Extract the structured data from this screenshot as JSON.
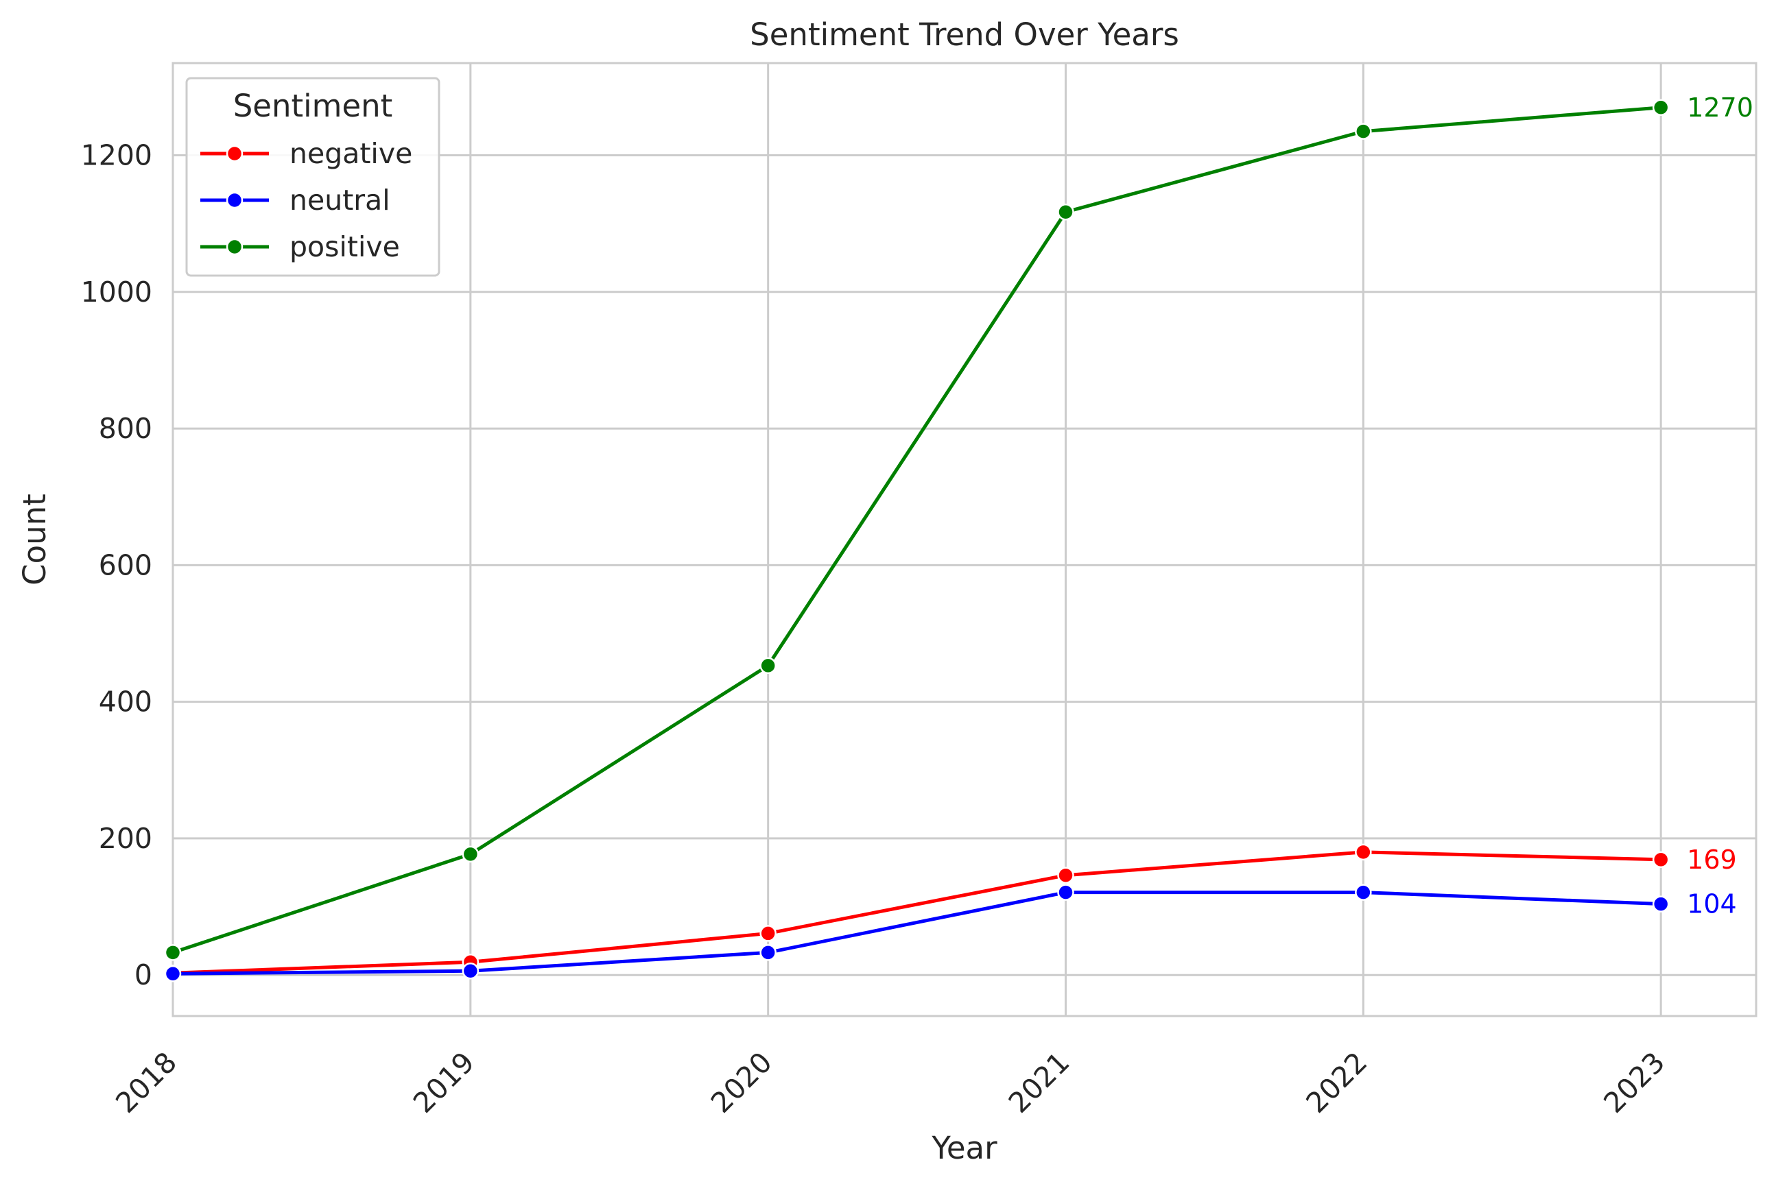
{
  "chart_data": {
    "type": "line",
    "title": "Sentiment Trend Over Years",
    "xlabel": "Year",
    "ylabel": "Count",
    "x": [
      "2018",
      "2019",
      "2020",
      "2021",
      "2022",
      "2023"
    ],
    "xlim": [
      2018,
      2023.32
    ],
    "ylim": [
      -60,
      1335
    ],
    "yticks": [
      0,
      200,
      400,
      600,
      800,
      1000,
      1200
    ],
    "grid": true,
    "legend": {
      "title": "Sentiment",
      "placement": "top-left"
    },
    "series": [
      {
        "name": "negative",
        "color": "#ff0000",
        "values": [
          3,
          19,
          61,
          146,
          180,
          169
        ]
      },
      {
        "name": "neutral",
        "color": "#0000ff",
        "values": [
          2,
          6,
          33,
          121,
          121,
          104
        ]
      },
      {
        "name": "positive",
        "color": "#008000",
        "values": [
          33,
          177,
          453,
          1117,
          1235,
          1270
        ]
      }
    ],
    "annotations": [
      {
        "series": "positive",
        "x": "2023",
        "value": 1270,
        "text": "1270"
      },
      {
        "series": "negative",
        "x": "2023",
        "value": 169,
        "text": "169"
      },
      {
        "series": "neutral",
        "x": "2023",
        "value": 104,
        "text": "104"
      }
    ]
  }
}
